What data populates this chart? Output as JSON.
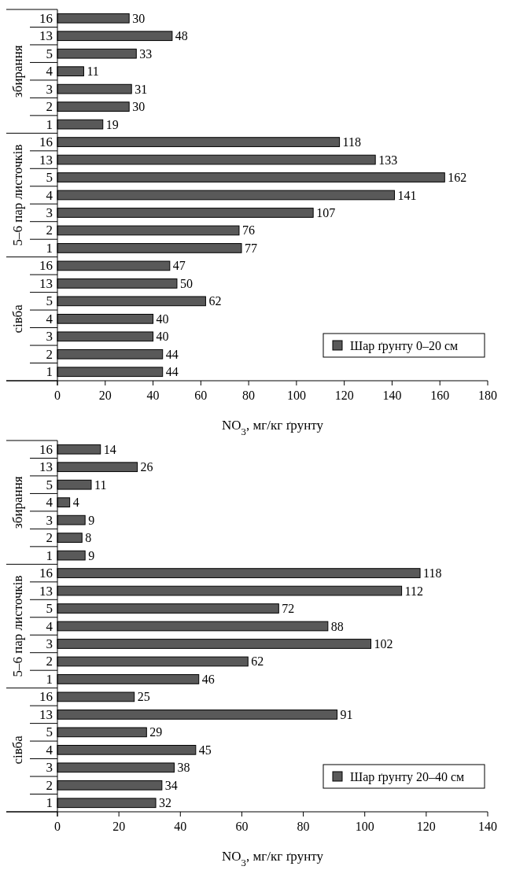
{
  "chart_data": [
    {
      "type": "bar",
      "orientation": "horizontal",
      "categories": [
        "16",
        "13",
        "5",
        "4",
        "3",
        "2",
        "1",
        "16",
        "13",
        "5",
        "4",
        "3",
        "2",
        "1",
        "16",
        "13",
        "5",
        "4",
        "3",
        "2",
        "1"
      ],
      "series": [
        {
          "name": "Шар ґрунту 0–20 см",
          "color": "#595959",
          "values": [
            30,
            48,
            33,
            11,
            31,
            30,
            19,
            118,
            133,
            162,
            141,
            107,
            76,
            77,
            47,
            50,
            62,
            40,
            40,
            44,
            44
          ]
        }
      ],
      "xlim": [
        0,
        180
      ],
      "xticks": [
        0,
        20,
        40,
        60,
        80,
        100,
        120,
        140,
        160,
        180
      ],
      "xlabel": "NO$_{3}$, мг/кг ґрунту",
      "data_labels": true,
      "legend": "bottom right",
      "grid": false,
      "annotations": [
        "збирання",
        "5–6 пар листочків",
        "сівба"
      ]
    },
    {
      "type": "bar",
      "orientation": "horizontal",
      "categories": [
        "16",
        "13",
        "5",
        "4",
        "3",
        "2",
        "1",
        "16",
        "13",
        "5",
        "4",
        "3",
        "2",
        "1",
        "16",
        "13",
        "5",
        "4",
        "3",
        "2",
        "1"
      ],
      "series": [
        {
          "name": "Шар ґрунту 20–40 см",
          "color": "#595959",
          "values": [
            14,
            26,
            11,
            4,
            9,
            8,
            9,
            118,
            112,
            72,
            88,
            102,
            62,
            46,
            25,
            91,
            29,
            45,
            38,
            34,
            32
          ]
        }
      ],
      "xlim": [
        0,
        140
      ],
      "xticks": [
        0,
        20,
        40,
        60,
        80,
        100,
        120,
        140
      ],
      "xlabel": "NO$_{3}$, мг/кг ґрунту",
      "data_labels": true,
      "legend": "bottom right",
      "grid": false,
      "annotations": [
        "збирання",
        "5–6 пар листочків",
        "сівба"
      ]
    }
  ]
}
